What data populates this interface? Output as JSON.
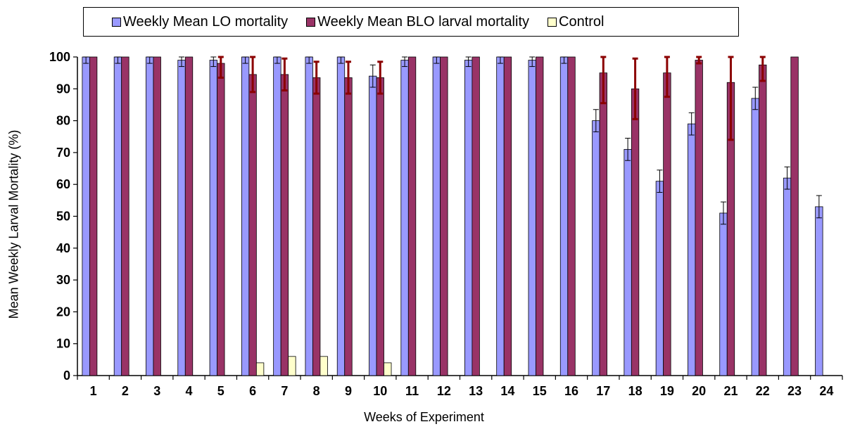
{
  "chart_data": {
    "type": "bar",
    "title": "",
    "xlabel": "Weeks of Experiment",
    "ylabel": "Mean Weekly Larval Mortality (%)",
    "ylim": [
      0,
      100
    ],
    "yticks": [
      0,
      10,
      20,
      30,
      40,
      50,
      60,
      70,
      80,
      90,
      100
    ],
    "grid": false,
    "legend_position": "top",
    "categories": [
      "1",
      "2",
      "3",
      "4",
      "5",
      "6",
      "7",
      "8",
      "9",
      "10",
      "11",
      "12",
      "13",
      "14",
      "15",
      "16",
      "17",
      "18",
      "19",
      "20",
      "21",
      "22",
      "23",
      "24"
    ],
    "series": [
      {
        "name": "Weekly Mean LO mortality",
        "color": "#9999ff",
        "values": [
          100,
          100,
          100,
          99,
          99,
          100,
          100,
          100,
          100,
          94,
          99,
          100,
          99,
          100,
          99,
          100,
          80,
          71,
          61,
          79,
          51,
          87,
          62,
          53
        ],
        "errors": [
          2,
          2,
          2,
          2,
          2,
          2,
          2,
          2,
          2,
          3.5,
          2,
          2,
          2,
          2,
          2,
          2,
          3.5,
          3.5,
          3.5,
          3.5,
          3.5,
          3.5,
          3.5,
          3.5
        ]
      },
      {
        "name": "Weekly Mean BLO larval mortality",
        "color": "#993366",
        "values": [
          100,
          100,
          100,
          100,
          98,
          94.5,
          94.5,
          93.5,
          93.5,
          93.5,
          100,
          100,
          100,
          100,
          100,
          100,
          95,
          90,
          95,
          99,
          92,
          97.5,
          100,
          null
        ],
        "errors": [
          0,
          0,
          0,
          0,
          4.5,
          5.5,
          5,
          5,
          5,
          5,
          0,
          0,
          0,
          0,
          0,
          0,
          9.5,
          9.5,
          7.5,
          1,
          18,
          5,
          0,
          0
        ]
      },
      {
        "name": "Control",
        "color": "#ffffcc",
        "values": [
          0,
          0,
          0,
          0,
          0,
          4,
          6,
          6,
          0,
          4,
          0,
          0,
          0,
          0,
          0,
          0,
          0,
          0,
          0,
          0,
          0,
          0,
          0,
          0
        ]
      }
    ]
  }
}
